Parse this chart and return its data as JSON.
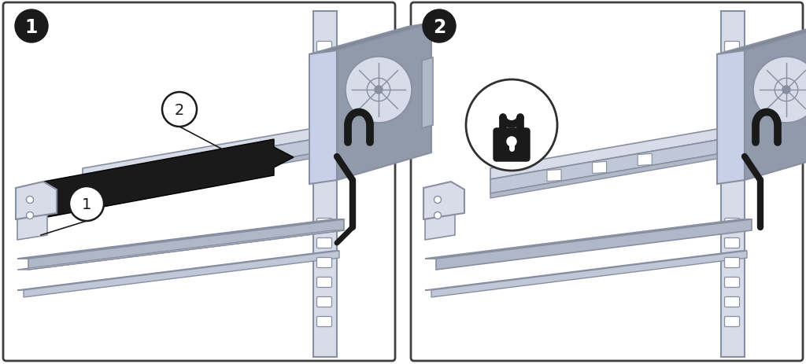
{
  "figure_width": 10.24,
  "figure_height": 4.64,
  "dpi": 100,
  "bg_color": "#ffffff",
  "c_light": "#d8dce8",
  "c_mid": "#b0b8c8",
  "c_dark": "#888fa0",
  "c_vdark": "#505860",
  "c_black": "#1a1a1a",
  "c_silver": "#c0c8d8",
  "c_gray": "#909aaa",
  "c_lightblue": "#c8d0e8",
  "c_panel_bg": "#ffffff",
  "c_panel_edge": "#404040",
  "c_top": "#808898"
}
